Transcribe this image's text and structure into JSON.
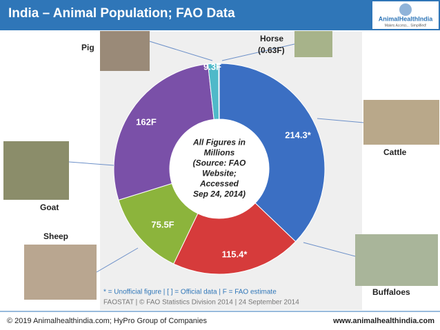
{
  "chart_data": {
    "type": "donut",
    "title": "India – Animal Population; FAO Data",
    "categories": [
      "Cattle",
      "Buffaloes",
      "Sheep",
      "Goat",
      "Pig",
      "Horse"
    ],
    "values": [
      214.3,
      115.4,
      75.5,
      162,
      9.3,
      0.63
    ],
    "value_labels": [
      "214.3*",
      "115.4*",
      "75.5F",
      "162F",
      "9.3F",
      "(0.63F)"
    ],
    "colors": [
      "#3b6fc3",
      "#d63b3b",
      "#8cb43c",
      "#7a50a8",
      "#4fb9c9",
      "#1f3d6e"
    ],
    "center_text": [
      "All Figures in",
      "Millions",
      "(Source: FAO",
      "Website;",
      "Accessed",
      "Sep 24, 2014)"
    ],
    "notes": [
      "* = Unofficial figure | [ ] = Official data | F = FAO estimate",
      "FAOSTAT | © FAO Statistics Division 2014 | 24 September 2014"
    ],
    "logo": {
      "name": "AnimalHealthIndia",
      "tagline": "Makes Access... Simplified!"
    },
    "footer": {
      "left": "© 2019 Animalhealthindia.com;  HyPro Group of Companies",
      "right": "www.animalhealthindia.com"
    }
  }
}
